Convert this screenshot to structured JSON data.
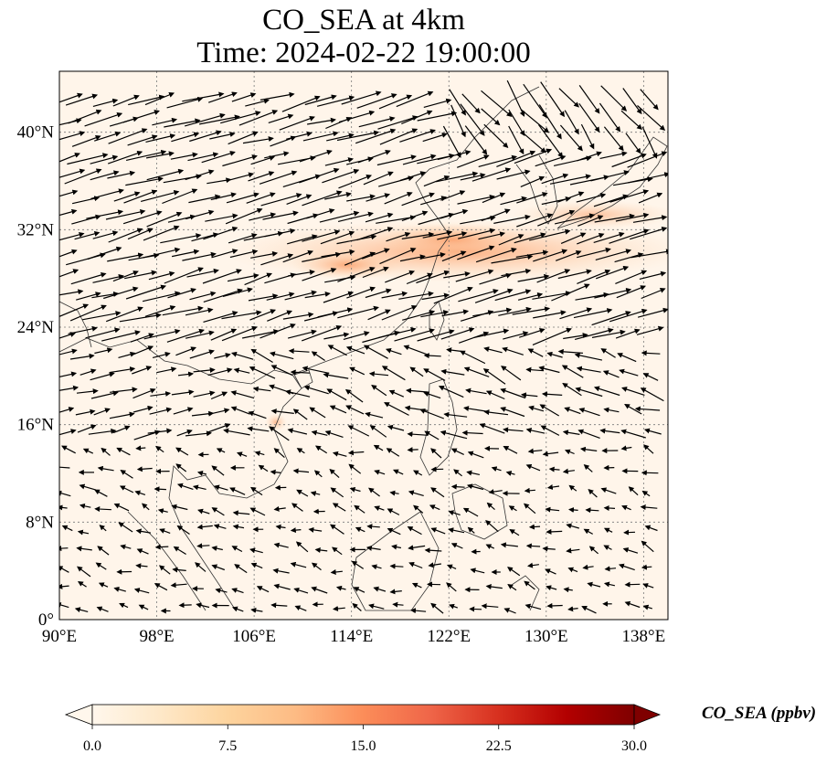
{
  "title": {
    "line1": "CO_SEA at 4km",
    "line2": "Time: 2024-02-22 19:00:00"
  },
  "map": {
    "lon_range": [
      90,
      140
    ],
    "lat_range": [
      0,
      45
    ],
    "lon_ticks": [
      "90°E",
      "98°E",
      "106°E",
      "114°E",
      "122°E",
      "130°E",
      "138°E"
    ],
    "lon_tick_values": [
      90,
      98,
      106,
      114,
      122,
      130,
      138
    ],
    "lat_ticks": [
      "0°",
      "8°N",
      "16°N",
      "24°N",
      "32°N",
      "40°N"
    ],
    "lat_tick_values": [
      0,
      8,
      16,
      24,
      32,
      40
    ],
    "gridlines": "dotted",
    "background_color": "#fff5ea",
    "plume_color": "#fdbf86",
    "vector_color": "#000000"
  },
  "colorbar": {
    "label": "CO_SEA (ppbv)",
    "range": [
      0,
      30
    ],
    "tick_labels": [
      "0.0",
      "7.5",
      "15.0",
      "22.5",
      "30.0"
    ],
    "tick_values": [
      0,
      7.5,
      15,
      22.5,
      30
    ],
    "colormap": "OrRd",
    "stops": [
      "#fff7ec",
      "#fee8c8",
      "#fdd49e",
      "#fdbb84",
      "#fc8d59",
      "#ef6548",
      "#d7301f",
      "#b30000",
      "#7f0000"
    ],
    "extend": "both"
  }
}
